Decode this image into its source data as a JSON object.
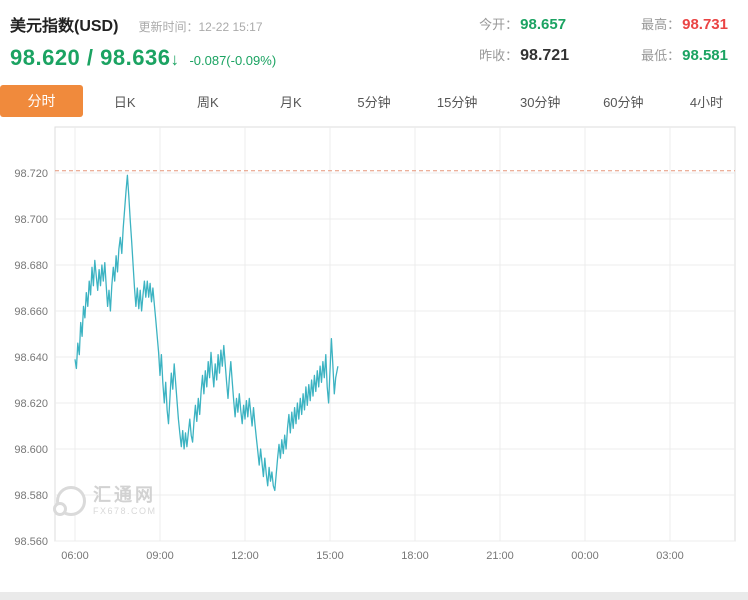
{
  "header": {
    "title": "美元指数(USD)",
    "update_time": "更新时间：12-22 15:17",
    "price_bid": "98.620",
    "price_separator": " / ",
    "price_ask": "98.636",
    "arrow": "↓",
    "change": "-0.087(-0.09%)",
    "stats": {
      "open": {
        "label": "今开：",
        "value": "98.657"
      },
      "high": {
        "label": "最高：",
        "value": "98.731"
      },
      "prev_close": {
        "label": "昨收：",
        "value": "98.721"
      },
      "low": {
        "label": "最低：",
        "value": "98.581"
      }
    }
  },
  "tabs": [
    "分时",
    "日K",
    "周K",
    "月K",
    "5分钟",
    "15分钟",
    "30分钟",
    "60分钟",
    "4小时"
  ],
  "watermark": {
    "name": "汇通网",
    "domain": "FX678.COM"
  },
  "colors": {
    "up_green": "#1ba362",
    "down_red": "#ea4444",
    "active_tab_orange": "#f08a3c"
  },
  "chart_data": {
    "type": "line",
    "x_axis": {
      "start_hour": 6,
      "hours_per_tick": 3,
      "ticks": [
        "06:00",
        "09:00",
        "12:00",
        "15:00",
        "18:00",
        "21:00",
        "00:00",
        "03:00"
      ]
    },
    "y_axis": {
      "min": 98.56,
      "max": 98.74,
      "ticks": [
        98.72,
        98.7,
        98.68,
        98.66,
        98.64,
        98.62,
        98.6,
        98.58,
        98.56
      ]
    },
    "prev_close_line": 98.721,
    "colors": {
      "line": "#3cb3c2",
      "prev_close_line": "#e6967a",
      "grid": "#ececec",
      "border": "#dddddd",
      "axis_text": "#777777"
    },
    "series": [
      {
        "name": "美元指数",
        "points": [
          [
            6.0,
            98.639
          ],
          [
            6.05,
            98.635
          ],
          [
            6.1,
            98.646
          ],
          [
            6.15,
            98.641
          ],
          [
            6.2,
            98.655
          ],
          [
            6.25,
            98.649
          ],
          [
            6.3,
            98.662
          ],
          [
            6.35,
            98.657
          ],
          [
            6.4,
            98.668
          ],
          [
            6.45,
            98.662
          ],
          [
            6.5,
            98.673
          ],
          [
            6.55,
            98.667
          ],
          [
            6.6,
            98.679
          ],
          [
            6.65,
            98.671
          ],
          [
            6.7,
            98.682
          ],
          [
            6.75,
            98.675
          ],
          [
            6.8,
            98.669
          ],
          [
            6.85,
            98.678
          ],
          [
            6.9,
            98.671
          ],
          [
            6.95,
            98.68
          ],
          [
            7.0,
            98.673
          ],
          [
            7.05,
            98.681
          ],
          [
            7.1,
            98.671
          ],
          [
            7.15,
            98.662
          ],
          [
            7.2,
            98.669
          ],
          [
            7.25,
            98.66
          ],
          [
            7.3,
            98.671
          ],
          [
            7.35,
            98.679
          ],
          [
            7.4,
            98.673
          ],
          [
            7.45,
            98.684
          ],
          [
            7.5,
            98.677
          ],
          [
            7.55,
            98.687
          ],
          [
            7.6,
            98.692
          ],
          [
            7.65,
            98.685
          ],
          [
            7.7,
            98.696
          ],
          [
            7.75,
            98.704
          ],
          [
            7.8,
            98.712
          ],
          [
            7.85,
            98.719
          ],
          [
            7.9,
            98.71
          ],
          [
            7.95,
            98.699
          ],
          [
            8.0,
            98.69
          ],
          [
            8.05,
            98.68
          ],
          [
            8.1,
            98.67
          ],
          [
            8.15,
            98.662
          ],
          [
            8.2,
            98.67
          ],
          [
            8.25,
            98.661
          ],
          [
            8.3,
            98.669
          ],
          [
            8.35,
            98.66
          ],
          [
            8.4,
            98.667
          ],
          [
            8.45,
            98.673
          ],
          [
            8.5,
            98.666
          ],
          [
            8.55,
            98.673
          ],
          [
            8.6,
            98.666
          ],
          [
            8.65,
            98.672
          ],
          [
            8.7,
            98.664
          ],
          [
            8.75,
            98.67
          ],
          [
            8.8,
            98.663
          ],
          [
            8.85,
            98.656
          ],
          [
            8.9,
            98.649
          ],
          [
            8.95,
            98.642
          ],
          [
            9.0,
            98.632
          ],
          [
            9.05,
            98.641
          ],
          [
            9.1,
            98.629
          ],
          [
            9.15,
            98.62
          ],
          [
            9.2,
            98.629
          ],
          [
            9.25,
            98.617
          ],
          [
            9.3,
            98.611
          ],
          [
            9.35,
            98.622
          ],
          [
            9.4,
            98.633
          ],
          [
            9.45,
            98.626
          ],
          [
            9.5,
            98.637
          ],
          [
            9.55,
            98.629
          ],
          [
            9.6,
            98.621
          ],
          [
            9.65,
            98.613
          ],
          [
            9.7,
            98.607
          ],
          [
            9.75,
            98.601
          ],
          [
            9.8,
            98.608
          ],
          [
            9.85,
            98.6
          ],
          [
            9.9,
            98.607
          ],
          [
            9.95,
            98.601
          ],
          [
            10.0,
            98.607
          ],
          [
            10.05,
            98.613
          ],
          [
            10.1,
            98.606
          ],
          [
            10.15,
            98.603
          ],
          [
            10.2,
            98.612
          ],
          [
            10.25,
            98.619
          ],
          [
            10.3,
            98.612
          ],
          [
            10.35,
            98.622
          ],
          [
            10.4,
            98.615
          ],
          [
            10.45,
            98.625
          ],
          [
            10.5,
            98.632
          ],
          [
            10.55,
            98.624
          ],
          [
            10.6,
            98.634
          ],
          [
            10.65,
            98.627
          ],
          [
            10.7,
            98.638
          ],
          [
            10.75,
            98.631
          ],
          [
            10.8,
            98.642
          ],
          [
            10.85,
            98.634
          ],
          [
            10.9,
            98.627
          ],
          [
            10.95,
            98.637
          ],
          [
            11.0,
            98.63
          ],
          [
            11.05,
            98.641
          ],
          [
            11.1,
            98.633
          ],
          [
            11.15,
            98.643
          ],
          [
            11.2,
            98.636
          ],
          [
            11.25,
            98.645
          ],
          [
            11.3,
            98.637
          ],
          [
            11.35,
            98.629
          ],
          [
            11.4,
            98.622
          ],
          [
            11.45,
            98.631
          ],
          [
            11.5,
            98.638
          ],
          [
            11.55,
            98.629
          ],
          [
            11.6,
            98.621
          ],
          [
            11.65,
            98.614
          ],
          [
            11.7,
            98.622
          ],
          [
            11.75,
            98.616
          ],
          [
            11.8,
            98.624
          ],
          [
            11.85,
            98.617
          ],
          [
            11.9,
            98.611
          ],
          [
            11.95,
            98.619
          ],
          [
            12.0,
            98.613
          ],
          [
            12.05,
            98.621
          ],
          [
            12.1,
            98.614
          ],
          [
            12.15,
            98.622
          ],
          [
            12.2,
            98.616
          ],
          [
            12.25,
            98.61
          ],
          [
            12.3,
            98.618
          ],
          [
            12.35,
            98.611
          ],
          [
            12.4,
            98.605
          ],
          [
            12.45,
            98.599
          ],
          [
            12.5,
            98.593
          ],
          [
            12.55,
            98.6
          ],
          [
            12.6,
            98.594
          ],
          [
            12.65,
            98.588
          ],
          [
            12.7,
            98.596
          ],
          [
            12.75,
            98.589
          ],
          [
            12.8,
            98.584
          ],
          [
            12.85,
            98.592
          ],
          [
            12.9,
            98.586
          ],
          [
            12.95,
            98.59
          ],
          [
            13.0,
            98.584
          ],
          [
            13.05,
            98.582
          ],
          [
            13.1,
            98.589
          ],
          [
            13.15,
            98.596
          ],
          [
            13.2,
            98.602
          ],
          [
            13.25,
            98.596
          ],
          [
            13.3,
            98.604
          ],
          [
            13.35,
            98.598
          ],
          [
            13.4,
            98.606
          ],
          [
            13.45,
            98.6
          ],
          [
            13.5,
            98.609
          ],
          [
            13.55,
            98.615
          ],
          [
            13.6,
            98.607
          ],
          [
            13.65,
            98.616
          ],
          [
            13.7,
            98.609
          ],
          [
            13.75,
            98.618
          ],
          [
            13.8,
            98.611
          ],
          [
            13.85,
            98.62
          ],
          [
            13.9,
            98.613
          ],
          [
            13.95,
            98.622
          ],
          [
            14.0,
            98.615
          ],
          [
            14.05,
            98.624
          ],
          [
            14.1,
            98.617
          ],
          [
            14.15,
            98.627
          ],
          [
            14.2,
            98.619
          ],
          [
            14.25,
            98.628
          ],
          [
            14.3,
            98.621
          ],
          [
            14.35,
            98.63
          ],
          [
            14.4,
            98.623
          ],
          [
            14.45,
            98.632
          ],
          [
            14.5,
            98.625
          ],
          [
            14.55,
            98.634
          ],
          [
            14.6,
            98.627
          ],
          [
            14.65,
            98.636
          ],
          [
            14.7,
            98.629
          ],
          [
            14.75,
            98.638
          ],
          [
            14.8,
            98.631
          ],
          [
            14.85,
            98.641
          ],
          [
            14.9,
            98.627
          ],
          [
            14.95,
            98.62
          ],
          [
            15.0,
            98.634
          ],
          [
            15.05,
            98.648
          ],
          [
            15.1,
            98.637
          ],
          [
            15.15,
            98.624
          ],
          [
            15.2,
            98.631
          ],
          [
            15.28,
            98.636
          ]
        ]
      }
    ]
  }
}
